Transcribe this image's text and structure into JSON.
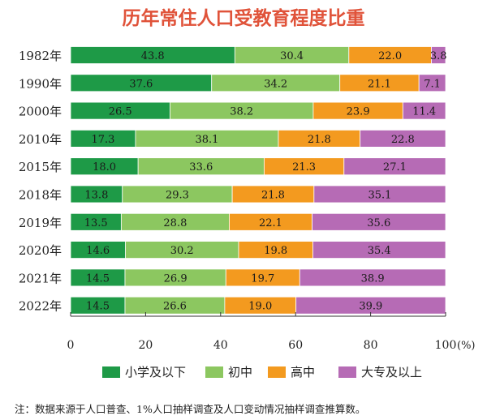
{
  "chart_data": {
    "type": "bar",
    "orientation": "horizontal",
    "stacked": true,
    "title": "历年常住人口受教育程度比重",
    "categories": [
      "1982年",
      "1990年",
      "2000年",
      "2010年",
      "2015年",
      "2018年",
      "2019年",
      "2020年",
      "2021年",
      "2022年"
    ],
    "series": [
      {
        "name": "小学及以下",
        "color": "#1e9a47",
        "values": [
          43.8,
          37.6,
          26.5,
          17.3,
          18.0,
          13.8,
          13.5,
          14.6,
          14.5,
          14.5
        ]
      },
      {
        "name": "初中",
        "color": "#8cc760",
        "values": [
          30.4,
          34.2,
          38.2,
          38.1,
          33.6,
          29.3,
          28.8,
          30.2,
          26.9,
          26.6
        ]
      },
      {
        "name": "高中",
        "color": "#f39a1f",
        "values": [
          22.0,
          21.1,
          23.9,
          21.8,
          21.3,
          21.8,
          22.1,
          19.8,
          19.7,
          19.0
        ]
      },
      {
        "name": "大专及以上",
        "color": "#b66bb5",
        "values": [
          3.8,
          7.1,
          11.4,
          22.8,
          27.1,
          35.1,
          35.6,
          35.4,
          38.9,
          39.9
        ]
      }
    ],
    "xlim": [
      0,
      100
    ],
    "xticks": [
      "0",
      "20",
      "40",
      "60",
      "80",
      "100"
    ],
    "xunit": "(%)",
    "legend_position": "bottom",
    "note": "注：数据来源于人口普查、1%人口抽样调查及人口变动情况抽样调查推算数。"
  },
  "colors": {
    "title": "#e0533a",
    "axis": "#333333"
  }
}
